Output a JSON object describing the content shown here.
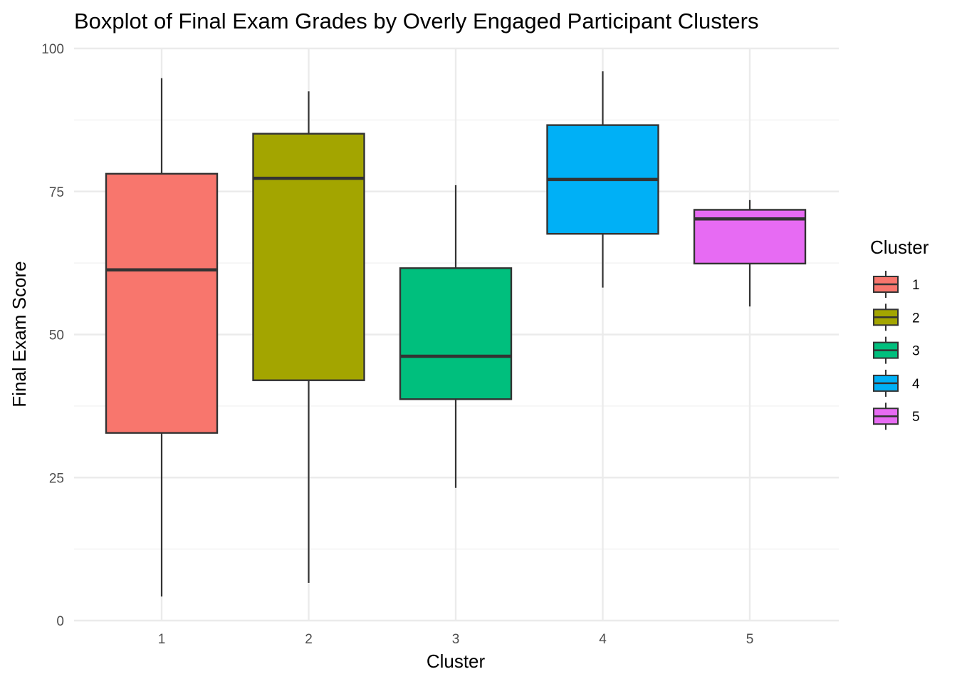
{
  "chart_data": {
    "type": "boxplot",
    "title": "Boxplot of Final Exam Grades by Overly Engaged Participant Clusters",
    "xlabel": "Cluster",
    "ylabel": "Final Exam Score",
    "ylim": [
      0,
      100
    ],
    "yticks": [
      "0",
      "25",
      "50",
      "75",
      "100"
    ],
    "categories": [
      "1",
      "2",
      "3",
      "4",
      "5"
    ],
    "legend_title": "Cluster",
    "legend_position": "right",
    "grid": true,
    "colors": [
      "#F8766D",
      "#A3A500",
      "#00BF7D",
      "#00B0F6",
      "#E76BF3"
    ],
    "boxes": [
      {
        "cluster": "1",
        "min": 4.2,
        "q1": 32.8,
        "median": 61.3,
        "q3": 78.1,
        "max": 94.8
      },
      {
        "cluster": "2",
        "min": 6.6,
        "q1": 42.0,
        "median": 77.3,
        "q3": 85.1,
        "max": 92.5
      },
      {
        "cluster": "3",
        "min": 23.2,
        "q1": 38.7,
        "median": 46.2,
        "q3": 61.6,
        "max": 76.1
      },
      {
        "cluster": "4",
        "min": 58.2,
        "q1": 67.6,
        "median": 77.1,
        "q3": 86.6,
        "max": 96.0
      },
      {
        "cluster": "5",
        "min": 54.9,
        "q1": 62.4,
        "median": 70.2,
        "q3": 71.8,
        "max": 73.5
      }
    ]
  }
}
